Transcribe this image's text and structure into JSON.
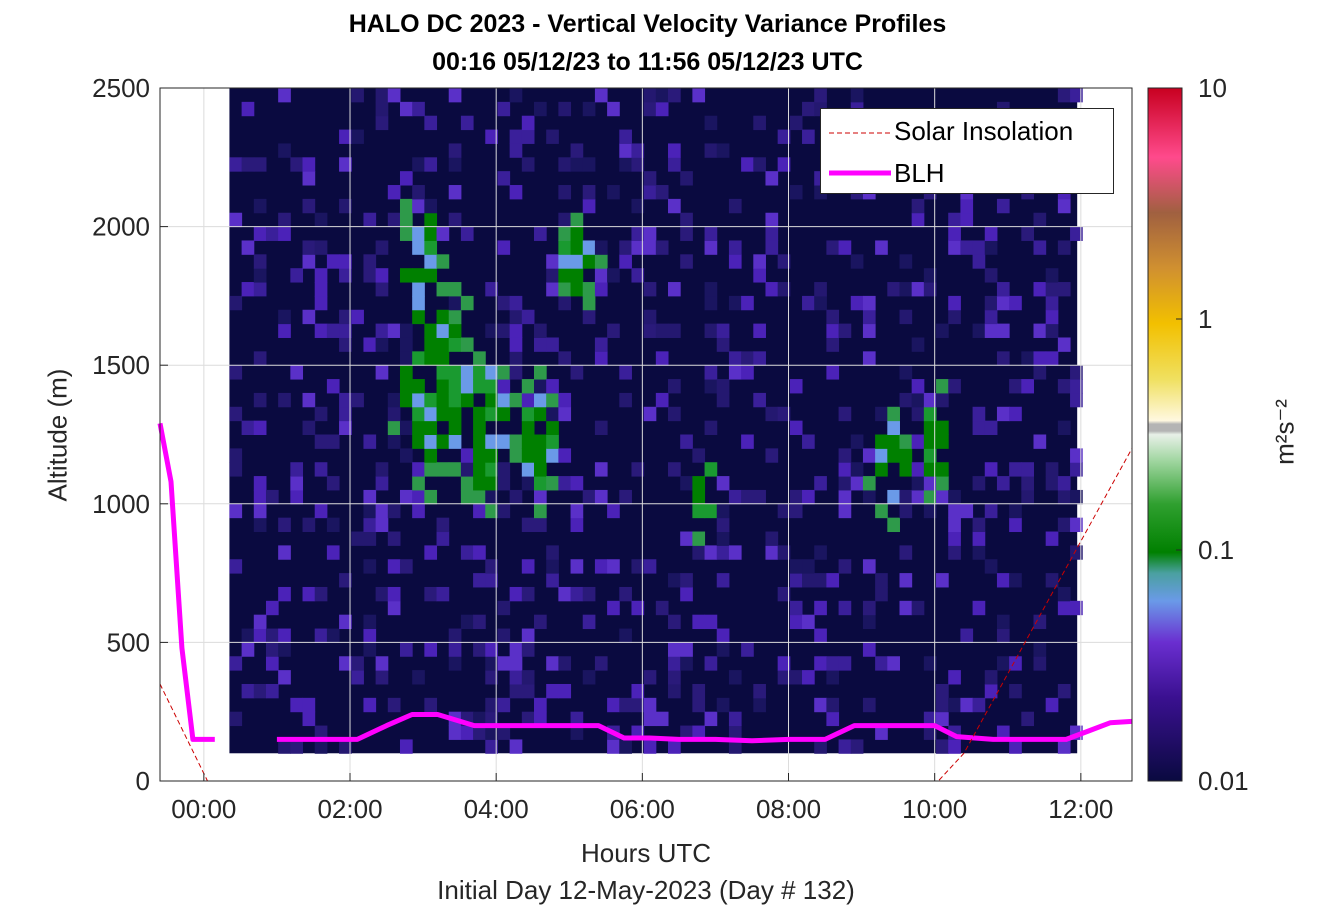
{
  "title_line1": "HALO DC 2023 - Vertical Velocity Variance Profiles",
  "title_line2": "00:16 05/12/23 to 11:56 05/12/23  UTC",
  "xlabel": "Hours UTC",
  "subxlabel": "Initial Day 12-May-2023 (Day # 132)",
  "ylabel": "Altitude (m)",
  "colorbar_label": "m²s⁻²",
  "legend": {
    "solar": "Solar Insolation",
    "blh": "BLH"
  },
  "colors": {
    "blh": "#ff00ff",
    "solar": "#cc0000",
    "background": "#0a0a40"
  },
  "chart_data": {
    "type": "heatmap",
    "title": "HALO DC 2023 - Vertical Velocity Variance Profiles",
    "xlabel": "Hours UTC",
    "ylabel": "Altitude (m)",
    "xlim": [
      -0.6,
      12.7
    ],
    "ylim": [
      0,
      2500
    ],
    "x_ticks": [
      "00:00",
      "02:00",
      "04:00",
      "06:00",
      "08:00",
      "10:00",
      "12:00"
    ],
    "x_tick_values": [
      0,
      2,
      4,
      6,
      8,
      10,
      12
    ],
    "y_ticks": [
      0,
      500,
      1000,
      1500,
      2000,
      2500
    ],
    "colorbar": {
      "scale": "log",
      "range": [
        0.01,
        10
      ],
      "ticks": [
        "0.01",
        "0.1",
        "1",
        "10"
      ],
      "tick_values": [
        0.01,
        0.1,
        1,
        10
      ]
    },
    "grid": true,
    "legend_position": "top-right",
    "series": [
      {
        "name": "BLH",
        "type": "line",
        "x": [
          -0.6,
          -0.45,
          -0.3,
          -0.15,
          0.15,
          0.5,
          1.0,
          1.5,
          2.1,
          2.5,
          2.85,
          3.2,
          3.7,
          4.3,
          4.8,
          5.4,
          5.75,
          6.1,
          6.5,
          7.0,
          7.5,
          8.0,
          8.5,
          8.9,
          9.3,
          9.6,
          10.0,
          10.3,
          10.8,
          11.3,
          11.8,
          12.1,
          12.4,
          12.7
        ],
        "y": [
          1290,
          1080,
          480,
          150,
          150,
          null,
          150,
          150,
          150,
          200,
          240,
          240,
          200,
          200,
          200,
          200,
          155,
          155,
          150,
          150,
          145,
          150,
          150,
          200,
          200,
          200,
          200,
          160,
          150,
          150,
          150,
          180,
          210,
          215
        ]
      },
      {
        "name": "Solar Insolation",
        "type": "line",
        "x": [
          -0.6,
          0.05,
          0.4,
          10.05,
          10.4,
          12.7
        ],
        "y": [
          350,
          0,
          0,
          0,
          100,
          1200
        ]
      }
    ]
  }
}
